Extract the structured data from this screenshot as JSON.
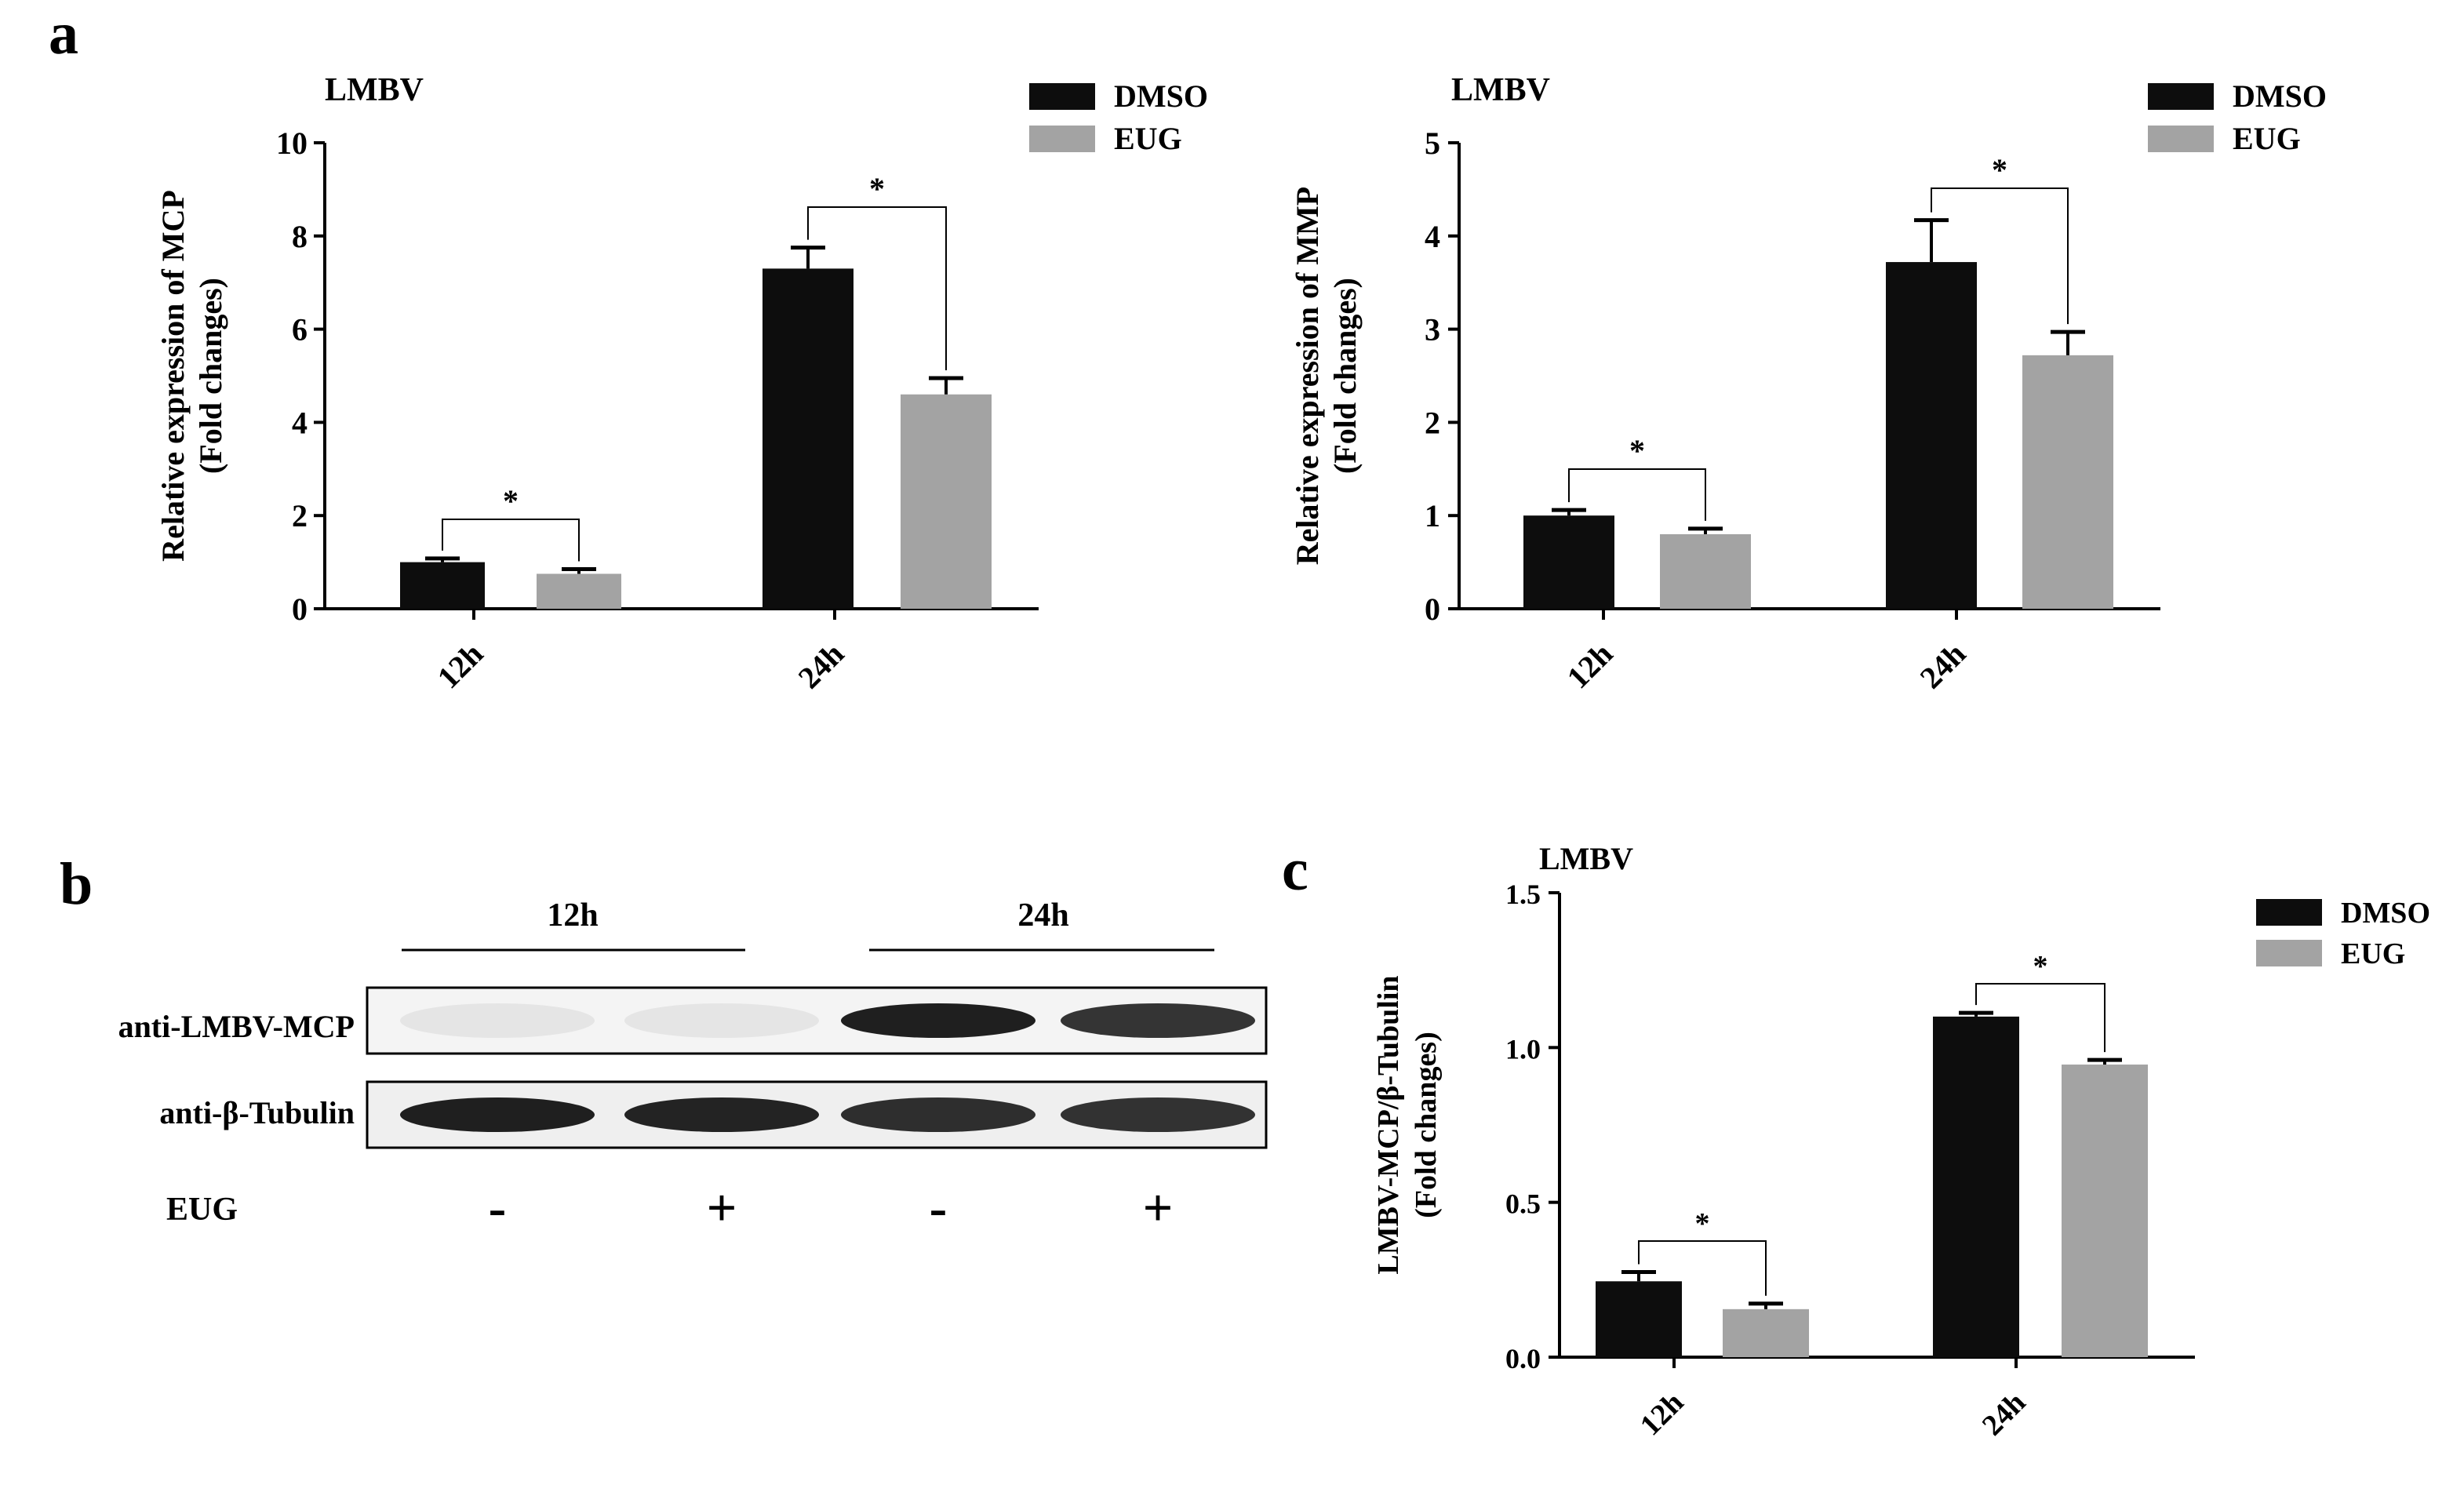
{
  "panels": {
    "a": {
      "letter": "a"
    },
    "b": {
      "letter": "b",
      "groups": [
        "12h",
        "24h"
      ],
      "rows": [
        "anti-LMBV-MCP",
        "anti-β-Tubulin"
      ],
      "treatment_label": "EUG",
      "lanes": [
        "-",
        "+",
        "-",
        "+"
      ],
      "band_intensity": {
        "anti-LMBV-MCP": [
          0.03,
          0.03,
          0.95,
          0.85
        ],
        "anti-β-Tubulin": [
          0.95,
          0.93,
          0.88,
          0.86
        ]
      }
    },
    "c": {
      "letter": "c"
    }
  },
  "colors": {
    "DMSO": "#0d0d0d",
    "EUG": "#a3a3a3"
  },
  "chart_data": [
    {
      "id": "a1",
      "type": "bar",
      "title": "LMBV",
      "ylabel": "Relative expression of MCP",
      "ylabel2": "(Fold changes)",
      "categories": [
        "12h",
        "24h"
      ],
      "series": [
        {
          "name": "DMSO",
          "values": [
            1.0,
            7.3
          ],
          "errors": [
            0.08,
            0.45
          ]
        },
        {
          "name": "EUG",
          "values": [
            0.75,
            4.6
          ],
          "errors": [
            0.1,
            0.35
          ]
        }
      ],
      "ylim": [
        0,
        10
      ],
      "yticks": [
        "0",
        "2",
        "4",
        "6",
        "8",
        "10"
      ],
      "significance": [
        "*",
        "*"
      ],
      "legend": "top-right"
    },
    {
      "id": "a2",
      "type": "bar",
      "title": "LMBV",
      "ylabel": "Relative expression of MMP",
      "ylabel2": "(Fold changes)",
      "categories": [
        "12h",
        "24h"
      ],
      "series": [
        {
          "name": "DMSO",
          "values": [
            1.0,
            3.72
          ],
          "errors": [
            0.06,
            0.45
          ]
        },
        {
          "name": "EUG",
          "values": [
            0.8,
            2.72
          ],
          "errors": [
            0.06,
            0.25
          ]
        }
      ],
      "ylim": [
        0,
        5
      ],
      "yticks": [
        "0",
        "1",
        "2",
        "3",
        "4",
        "5"
      ],
      "significance": [
        "*",
        "*"
      ],
      "legend": "top-right"
    },
    {
      "id": "c",
      "type": "bar",
      "title": "LMBV",
      "ylabel": "LMBV-MCP/β-Tubulin",
      "ylabel2": "(Fold changes)",
      "categories": [
        "12h",
        "24h"
      ],
      "series": [
        {
          "name": "DMSO",
          "values": [
            0.245,
            1.1
          ],
          "errors": [
            0.03,
            0.012
          ]
        },
        {
          "name": "EUG",
          "values": [
            0.155,
            0.945
          ],
          "errors": [
            0.018,
            0.015
          ]
        }
      ],
      "ylim": [
        0,
        1.5
      ],
      "yticks": [
        "0.0",
        "0.5",
        "1.0",
        "1.5"
      ],
      "significance": [
        "*",
        "*"
      ],
      "legend": "top-right"
    }
  ]
}
